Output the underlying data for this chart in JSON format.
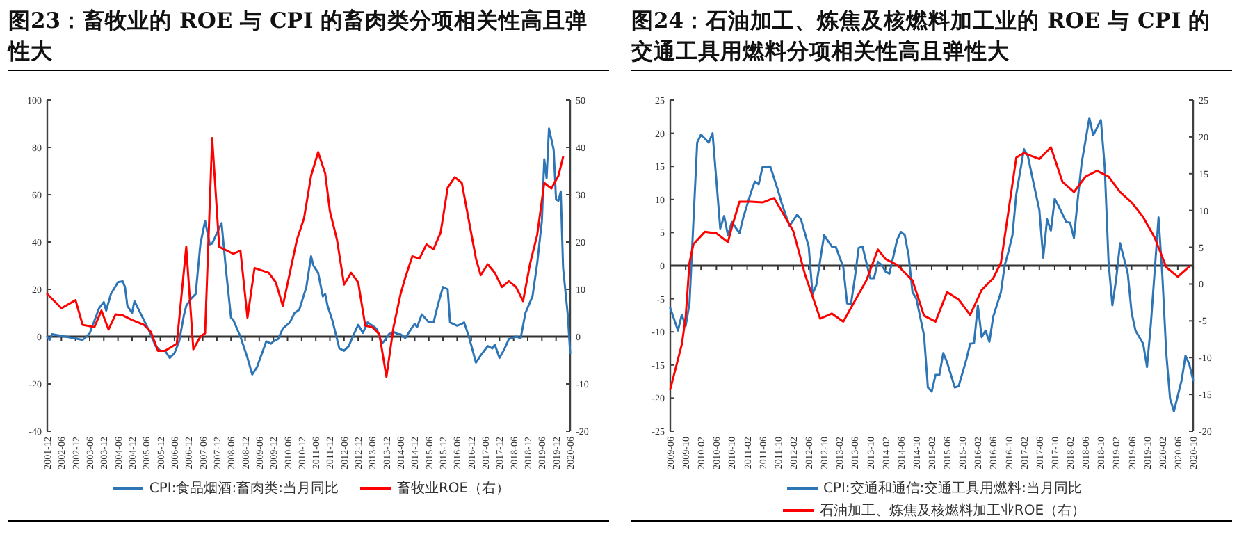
{
  "chart_data": [
    {
      "type": "line",
      "title": "图23：畜牧业的 ROE 与 CPI 的畜肉类分项相关性高且弹性大",
      "legend": "bottom",
      "xlim": [
        "2001-12",
        "2020-06"
      ],
      "ylim": [
        -40,
        100
      ],
      "yticks": [
        -40,
        -20,
        0,
        20,
        40,
        60,
        80,
        100
      ],
      "y2lim": [
        -20,
        50
      ],
      "y2ticks": [
        -20,
        -10,
        0,
        10,
        20,
        30,
        40,
        50
      ],
      "xticks": [
        "2001-12",
        "2002-06",
        "2002-12",
        "2003-06",
        "2003-12",
        "2004-06",
        "2004-12",
        "2005-06",
        "2005-12",
        "2006-06",
        "2006-12",
        "2007-06",
        "2007-12",
        "2008-06",
        "2008-12",
        "2009-06",
        "2009-12",
        "2010-06",
        "2010-12",
        "2011-06",
        "2011-12",
        "2012-06",
        "2012-12",
        "2013-06",
        "2013-12",
        "2014-06",
        "2014-12",
        "2015-06",
        "2015-12",
        "2016-06",
        "2016-12",
        "2017-06",
        "2017-12",
        "2018-06",
        "2018-12",
        "2019-06",
        "2019-12",
        "2020-06"
      ],
      "series": [
        {
          "name": "CPI:食品烟酒:畜肉类:当月同比",
          "color": "#2e75b6",
          "x": [
            "2001-12",
            "2002-01",
            "2002-02",
            "2002-11",
            "2003-03",
            "2003-06",
            "2003-10",
            "2003-12",
            "2004-01",
            "2004-03",
            "2004-06",
            "2004-08",
            "2004-09",
            "2004-10",
            "2004-12",
            "2005-01",
            "2005-04",
            "2005-07",
            "2005-10",
            "2005-12",
            "2006-02",
            "2006-04",
            "2006-06",
            "2006-08",
            "2006-10",
            "2006-11",
            "2007-01",
            "2007-03",
            "2007-05",
            "2007-07",
            "2007-09",
            "2007-10",
            "2008-02",
            "2008-04",
            "2008-06",
            "2008-07",
            "2008-10",
            "2009-01",
            "2009-03",
            "2009-05",
            "2009-09",
            "2009-11",
            "2009-12",
            "2010-02",
            "2010-04",
            "2010-07",
            "2010-09",
            "2010-11",
            "2011-02",
            "2011-04",
            "2011-05",
            "2011-07",
            "2011-09",
            "2011-10",
            "2011-11",
            "2012-01",
            "2012-04",
            "2012-06",
            "2012-08",
            "2012-10",
            "2012-12",
            "2013-02",
            "2013-04",
            "2013-07",
            "2013-08",
            "2013-10",
            "2013-11",
            "2014-01",
            "2014-03",
            "2014-05",
            "2014-06",
            "2014-08",
            "2014-11",
            "2014-12",
            "2015-01",
            "2015-03",
            "2015-06",
            "2015-08",
            "2015-10",
            "2015-12",
            "2016-02",
            "2016-03",
            "2016-06",
            "2016-08",
            "2016-09",
            "2016-11",
            "2017-02",
            "2017-04",
            "2017-07",
            "2017-09",
            "2017-10",
            "2017-12",
            "2018-02",
            "2018-04",
            "2018-07",
            "2018-09",
            "2018-11",
            "2019-02",
            "2019-04",
            "2019-06",
            "2019-07",
            "2019-08",
            "2019-09",
            "2019-11",
            "2019-12",
            "2020-01",
            "2020-02",
            "2020-03",
            "2020-05",
            "2020-06"
          ],
          "values": [
            0,
            -1.4,
            1,
            -0.6,
            -1.4,
            1.4,
            12,
            14.6,
            11,
            18,
            23,
            23.4,
            21,
            13,
            10,
            15,
            9,
            3,
            -4,
            -6,
            -6,
            -9,
            -7,
            -2,
            9,
            13,
            16,
            18,
            39,
            49,
            39,
            39.4,
            48,
            27,
            8,
            7,
            0,
            -9,
            -16,
            -13,
            -2,
            -3,
            -2,
            -1,
            3.4,
            6,
            10,
            11.4,
            21,
            34,
            30,
            27,
            17,
            18,
            13,
            7,
            -5,
            -6,
            -4,
            0.6,
            5,
            1.6,
            6,
            4,
            3,
            -3,
            -2,
            1,
            2,
            1,
            1,
            -0.6,
            4,
            5.4,
            4,
            9.4,
            6,
            6,
            14,
            21,
            20,
            6,
            4.6,
            5.4,
            6,
            0,
            -11,
            -8,
            -4,
            -5,
            -3.4,
            -9,
            -5.4,
            -1,
            0,
            -0.6,
            10,
            17,
            31,
            49,
            75,
            67,
            88,
            79,
            58,
            57.4,
            61.4,
            29,
            9,
            -7
          ]
        },
        {
          "name": "畜牧业ROE（右）",
          "color": "#ff0000",
          "axis": "y2",
          "x": [
            "2001-12",
            "2002-06",
            "2002-12",
            "2003-03",
            "2003-08",
            "2003-11",
            "2004-02",
            "2004-05",
            "2004-08",
            "2004-12",
            "2005-05",
            "2005-08",
            "2005-11",
            "2006-02",
            "2006-07",
            "2006-11",
            "2007-02",
            "2007-05",
            "2007-07",
            "2007-10",
            "2008-01",
            "2008-07",
            "2008-10",
            "2009-01",
            "2009-04",
            "2009-10",
            "2010-01",
            "2010-04",
            "2010-10",
            "2011-01",
            "2011-04",
            "2011-07",
            "2011-10",
            "2011-12",
            "2012-03",
            "2012-06",
            "2012-09",
            "2012-12",
            "2013-03",
            "2013-06",
            "2013-09",
            "2013-12",
            "2014-03",
            "2014-06",
            "2014-08",
            "2014-11",
            "2015-02",
            "2015-05",
            "2015-08",
            "2015-11",
            "2016-02",
            "2016-05",
            "2016-08",
            "2016-11",
            "2017-02",
            "2017-04",
            "2017-07",
            "2017-10",
            "2018-01",
            "2018-04",
            "2018-07",
            "2018-10",
            "2019-01",
            "2019-04",
            "2019-07",
            "2019-10",
            "2020-01",
            "2020-03"
          ],
          "values": [
            9,
            6,
            7.7,
            2.5,
            2,
            5.5,
            1.5,
            4.7,
            4.5,
            3.5,
            2.5,
            1,
            -3,
            -3,
            -1.5,
            19,
            -2.7,
            0,
            0.7,
            42,
            19,
            17.5,
            18.2,
            4,
            14.5,
            13.5,
            11.5,
            6.5,
            20.5,
            25,
            34,
            39,
            34.5,
            26.5,
            20.5,
            11,
            13.5,
            11.5,
            2.3,
            2,
            0.5,
            -8.5,
            2,
            9,
            12.5,
            17,
            16.5,
            19.5,
            18.5,
            22,
            31.5,
            33.7,
            32.5,
            24.5,
            16.5,
            13,
            15.3,
            13.5,
            10.5,
            11.7,
            10.5,
            7.5,
            15.5,
            21.5,
            32.5,
            31.3,
            34,
            38
          ]
        }
      ]
    },
    {
      "type": "line",
      "title": "图24：石油加工、炼焦及核燃料加工业的 ROE 与 CPI 的交通工具用燃料分项相关性高且弹性大",
      "legend": "bottom",
      "xlim": [
        "2009-06",
        "2020-10"
      ],
      "ylim": [
        -25,
        25
      ],
      "yticks": [
        -25,
        -20,
        -15,
        -10,
        -5,
        0,
        5,
        10,
        15,
        20,
        25
      ],
      "y2lim": [
        -20,
        25
      ],
      "y2ticks": [
        -20,
        -15,
        -10,
        -5,
        0,
        5,
        10,
        15,
        20,
        25
      ],
      "xticks": [
        "2009-06",
        "2009-10",
        "2010-02",
        "2010-06",
        "2010-10",
        "2011-02",
        "2011-06",
        "2011-10",
        "2012-02",
        "2012-06",
        "2012-10",
        "2013-02",
        "2013-06",
        "2013-10",
        "2014-02",
        "2014-06",
        "2014-10",
        "2015-02",
        "2015-06",
        "2015-10",
        "2016-02",
        "2016-06",
        "2016-10",
        "2017-02",
        "2017-06",
        "2017-10",
        "2018-02",
        "2018-06",
        "2018-10",
        "2019-02",
        "2019-06",
        "2019-10",
        "2020-02",
        "2020-06",
        "2020-10"
      ],
      "series": [
        {
          "name": "CPI:交通和通信:交通工具用燃料:当月同比",
          "color": "#2e75b6",
          "x": [
            "2009-06",
            "2009-08",
            "2009-09",
            "2009-10",
            "2009-11",
            "2010-01",
            "2010-02",
            "2010-04",
            "2010-05",
            "2010-07",
            "2010-08",
            "2010-09",
            "2010-10",
            "2010-12",
            "2011-01",
            "2011-03",
            "2011-04",
            "2011-05",
            "2011-06",
            "2011-08",
            "2011-10",
            "2011-11",
            "2012-01",
            "2012-03",
            "2012-04",
            "2012-06",
            "2012-07",
            "2012-08",
            "2012-10",
            "2012-12",
            "2013-01",
            "2013-03",
            "2013-04",
            "2013-05",
            "2013-06",
            "2013-07",
            "2013-08",
            "2013-10",
            "2013-11",
            "2013-12",
            "2014-01",
            "2014-02",
            "2014-03",
            "2014-05",
            "2014-06",
            "2014-07",
            "2014-08",
            "2014-09",
            "2014-10",
            "2014-12",
            "2015-01",
            "2015-02",
            "2015-03",
            "2015-04",
            "2015-05",
            "2015-06",
            "2015-08",
            "2015-09",
            "2015-11",
            "2015-12",
            "2016-01",
            "2016-02",
            "2016-03",
            "2016-04",
            "2016-05",
            "2016-06",
            "2016-08",
            "2016-09",
            "2016-10",
            "2016-11",
            "2016-12",
            "2017-02",
            "2017-03",
            "2017-04",
            "2017-06",
            "2017-07",
            "2017-08",
            "2017-09",
            "2017-10",
            "2017-11",
            "2018-01",
            "2018-02",
            "2018-03",
            "2018-04",
            "2018-05",
            "2018-07",
            "2018-08",
            "2018-10",
            "2018-11",
            "2018-12",
            "2019-01",
            "2019-02",
            "2019-03",
            "2019-05",
            "2019-06",
            "2019-07",
            "2019-09",
            "2019-10",
            "2019-11",
            "2020-01",
            "2020-02",
            "2020-03",
            "2020-04",
            "2020-05",
            "2020-07",
            "2020-08",
            "2020-09",
            "2020-10"
          ],
          "values": [
            -6.4,
            -9.8,
            -7.4,
            -9.1,
            -5.7,
            18.6,
            19.8,
            18.6,
            20,
            5.6,
            7.5,
            4.6,
            6.6,
            4.9,
            7.3,
            11.1,
            12.7,
            12.3,
            14.9,
            15,
            11.4,
            9.4,
            6,
            7.7,
            7,
            2.9,
            -4.3,
            -2.9,
            4.6,
            2.9,
            2.9,
            -0.2,
            -5.7,
            -5.8,
            -1.9,
            2.7,
            2.9,
            -1.9,
            -1.9,
            0.6,
            0.1,
            -0.9,
            -1.2,
            3.9,
            5.1,
            4.6,
            1.5,
            -4,
            -5,
            -10.5,
            -18.4,
            -19,
            -16.5,
            -16.5,
            -13.2,
            -14.6,
            -18.4,
            -18.2,
            -14.2,
            -11.8,
            -11.7,
            -6,
            -10.8,
            -9.8,
            -11.5,
            -7.7,
            -4,
            0.1,
            2.2,
            4.6,
            10.8,
            17.6,
            16.6,
            13.8,
            8.4,
            1.2,
            7,
            5.3,
            10.1,
            9,
            6.6,
            6.5,
            4.2,
            10.1,
            15.5,
            22.3,
            19.7,
            22,
            14.9,
            0.5,
            -6,
            -1.9,
            3.4,
            -1.2,
            -7.1,
            -9.8,
            -11.8,
            -15.3,
            -8.8,
            7.3,
            -1.6,
            -13.2,
            -20.1,
            -22,
            -17.3,
            -13.6,
            -14.9,
            -17.3
          ]
        },
        {
          "name": "石油加工、炼焦及核燃料加工业ROE（右）",
          "color": "#ff0000",
          "axis": "y2",
          "x": [
            "2009-06",
            "2009-09",
            "2009-10",
            "2009-11",
            "2009-12",
            "2010-03",
            "2010-06",
            "2010-09",
            "2010-10",
            "2010-12",
            "2011-03",
            "2011-06",
            "2011-09",
            "2012-02",
            "2012-05",
            "2012-09",
            "2012-12",
            "2013-03",
            "2013-06",
            "2013-09",
            "2013-12",
            "2014-02",
            "2014-05",
            "2014-09",
            "2014-12",
            "2015-03",
            "2015-06",
            "2015-09",
            "2015-12",
            "2016-03",
            "2016-06",
            "2016-08",
            "2016-12",
            "2017-02",
            "2017-06",
            "2017-09",
            "2017-12",
            "2018-03",
            "2018-06",
            "2018-09",
            "2018-12",
            "2019-03",
            "2019-06",
            "2019-09",
            "2019-12",
            "2020-03",
            "2020-06",
            "2020-09"
          ],
          "values": [
            -14.3,
            -8.2,
            -4.5,
            2.9,
            5.4,
            7.1,
            6.9,
            5.7,
            7.7,
            11.2,
            11.2,
            11.1,
            11.7,
            7.2,
            1.4,
            -4.7,
            -4,
            -5.1,
            -2.3,
            0.5,
            4.7,
            3.4,
            2.6,
            0.5,
            -4.3,
            -5.1,
            -1.1,
            -2.1,
            -4.2,
            -0.8,
            0.8,
            2.9,
            17.2,
            17.8,
            17,
            18.6,
            13.9,
            12.5,
            14.6,
            15.4,
            14.6,
            12.5,
            11.1,
            9.1,
            6.3,
            2.3,
            1,
            2.4
          ]
        }
      ]
    }
  ]
}
